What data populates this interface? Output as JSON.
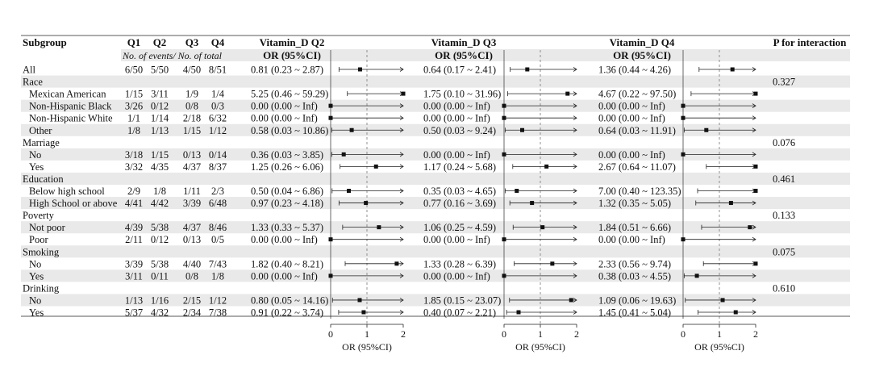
{
  "headers": {
    "subgroup": "Subgroup",
    "q1": "Q1",
    "q2": "Q2",
    "q3": "Q3",
    "q4": "Q4",
    "panel_titles": [
      "Vitamin_D Q2",
      "Vitamin_D Q3",
      "Vitamin_D Q4"
    ],
    "or_label": "OR (95%CI)",
    "events_note": "No. of events/ No. of total",
    "p_interaction": "P for interaction"
  },
  "chart_data": {
    "type": "forest",
    "xlabel": "OR (95%CI)",
    "xlim": [
      0,
      2
    ],
    "xticks": [
      0,
      1,
      2
    ],
    "reference_line": 1,
    "panels": [
      "Vitamin_D Q2",
      "Vitamin_D Q3",
      "Vitamin_D Q4"
    ],
    "rows": [
      {
        "label": "All",
        "kind": "item",
        "counts": [
          "6/50",
          "5/50",
          "4/50",
          "8/51"
        ],
        "or": [
          {
            "text": "0.81 (0.23 ~ 2.87)",
            "est": 0.81,
            "lo": 0.23,
            "hi": 2.87
          },
          {
            "text": "0.64 (0.17 ~ 2.41)",
            "est": 0.64,
            "lo": 0.17,
            "hi": 2.41
          },
          {
            "text": "1.36 (0.44 ~ 4.26)",
            "est": 1.36,
            "lo": 0.44,
            "hi": 4.26
          }
        ],
        "p": ""
      },
      {
        "label": "Race",
        "kind": "group",
        "p": "0.327"
      },
      {
        "label": "Mexican American",
        "kind": "item",
        "counts": [
          "1/15",
          "3/11",
          "1/9",
          "1/4"
        ],
        "or": [
          {
            "text": "5.25 (0.46 ~ 59.29)",
            "est": 5.25,
            "lo": 0.46,
            "hi": 59.29
          },
          {
            "text": "1.75 (0.10 ~ 31.96)",
            "est": 1.75,
            "lo": 0.1,
            "hi": 31.96
          },
          {
            "text": "4.67 (0.22 ~ 97.50)",
            "est": 4.67,
            "lo": 0.22,
            "hi": 97.5
          }
        ],
        "p": ""
      },
      {
        "label": "Non-Hispanic Black",
        "kind": "item",
        "counts": [
          "3/26",
          "0/12",
          "0/8",
          "0/3"
        ],
        "or": [
          {
            "text": "0.00 (0.00 ~ Inf)",
            "est": 0,
            "lo": 0,
            "hi": null
          },
          {
            "text": "0.00 (0.00 ~ Inf)",
            "est": 0,
            "lo": 0,
            "hi": null
          },
          {
            "text": "0.00 (0.00 ~ Inf)",
            "est": 0,
            "lo": 0,
            "hi": null
          }
        ],
        "p": ""
      },
      {
        "label": "Non-Hispanic White",
        "kind": "item",
        "counts": [
          "1/1",
          "1/14",
          "2/18",
          "6/32"
        ],
        "or": [
          {
            "text": "0.00 (0.00 ~ Inf)",
            "est": 0,
            "lo": 0,
            "hi": null
          },
          {
            "text": "0.00 (0.00 ~ Inf)",
            "est": 0,
            "lo": 0,
            "hi": null
          },
          {
            "text": "0.00 (0.00 ~ Inf)",
            "est": 0,
            "lo": 0,
            "hi": null
          }
        ],
        "p": ""
      },
      {
        "label": "Other",
        "kind": "item",
        "counts": [
          "1/8",
          "1/13",
          "1/15",
          "1/12"
        ],
        "or": [
          {
            "text": "0.58 (0.03 ~ 10.86)",
            "est": 0.58,
            "lo": 0.03,
            "hi": 10.86
          },
          {
            "text": "0.50 (0.03 ~ 9.24)",
            "est": 0.5,
            "lo": 0.03,
            "hi": 9.24
          },
          {
            "text": "0.64 (0.03 ~ 11.91)",
            "est": 0.64,
            "lo": 0.03,
            "hi": 11.91
          }
        ],
        "p": ""
      },
      {
        "label": "Marriage",
        "kind": "group",
        "p": "0.076"
      },
      {
        "label": "No",
        "kind": "item",
        "counts": [
          "3/18",
          "1/15",
          "0/13",
          "0/14"
        ],
        "or": [
          {
            "text": "0.36 (0.03 ~ 3.85)",
            "est": 0.36,
            "lo": 0.03,
            "hi": 3.85
          },
          {
            "text": "0.00 (0.00 ~ Inf)",
            "est": 0,
            "lo": 0,
            "hi": null
          },
          {
            "text": "0.00 (0.00 ~ Inf)",
            "est": 0,
            "lo": 0,
            "hi": null
          }
        ],
        "p": ""
      },
      {
        "label": "Yes",
        "kind": "item",
        "counts": [
          "3/32",
          "4/35",
          "4/37",
          "8/37"
        ],
        "or": [
          {
            "text": "1.25 (0.26 ~ 6.06)",
            "est": 1.25,
            "lo": 0.26,
            "hi": 6.06
          },
          {
            "text": "1.17 (0.24 ~ 5.68)",
            "est": 1.17,
            "lo": 0.24,
            "hi": 5.68
          },
          {
            "text": "2.67 (0.64 ~ 11.07)",
            "est": 2.67,
            "lo": 0.64,
            "hi": 11.07
          }
        ],
        "p": ""
      },
      {
        "label": "Education",
        "kind": "group",
        "p": "0.461"
      },
      {
        "label": "Below high school",
        "kind": "item",
        "counts": [
          "2/9",
          "1/8",
          "1/11",
          "2/3"
        ],
        "or": [
          {
            "text": "0.50 (0.04 ~ 6.86)",
            "est": 0.5,
            "lo": 0.04,
            "hi": 6.86
          },
          {
            "text": "0.35 (0.03 ~ 4.65)",
            "est": 0.35,
            "lo": 0.03,
            "hi": 4.65
          },
          {
            "text": "7.00 (0.40 ~ 123.35)",
            "est": 7.0,
            "lo": 0.4,
            "hi": 123.35
          }
        ],
        "p": ""
      },
      {
        "label": "High School or above",
        "kind": "item",
        "counts": [
          "4/41",
          "4/42",
          "3/39",
          "6/48"
        ],
        "or": [
          {
            "text": "0.97 (0.23 ~ 4.18)",
            "est": 0.97,
            "lo": 0.23,
            "hi": 4.18
          },
          {
            "text": "0.77 (0.16 ~ 3.69)",
            "est": 0.77,
            "lo": 0.16,
            "hi": 3.69
          },
          {
            "text": "1.32 (0.35 ~ 5.05)",
            "est": 1.32,
            "lo": 0.35,
            "hi": 5.05
          }
        ],
        "p": ""
      },
      {
        "label": "Poverty",
        "kind": "group",
        "p": "0.133"
      },
      {
        "label": "Not poor",
        "kind": "item",
        "counts": [
          "4/39",
          "5/38",
          "4/37",
          "8/46"
        ],
        "or": [
          {
            "text": "1.33 (0.33 ~ 5.37)",
            "est": 1.33,
            "lo": 0.33,
            "hi": 5.37
          },
          {
            "text": "1.06 (0.25 ~ 4.59)",
            "est": 1.06,
            "lo": 0.25,
            "hi": 4.59
          },
          {
            "text": "1.84 (0.51 ~ 6.66)",
            "est": 1.84,
            "lo": 0.51,
            "hi": 6.66
          }
        ],
        "p": ""
      },
      {
        "label": "Poor",
        "kind": "item",
        "counts": [
          "2/11",
          "0/12",
          "0/13",
          "0/5"
        ],
        "or": [
          {
            "text": "0.00 (0.00 ~ Inf)",
            "est": 0,
            "lo": 0,
            "hi": null
          },
          {
            "text": "0.00 (0.00 ~ Inf)",
            "est": 0,
            "lo": 0,
            "hi": null
          },
          {
            "text": "0.00 (0.00 ~ Inf)",
            "est": 0,
            "lo": 0,
            "hi": null
          }
        ],
        "p": ""
      },
      {
        "label": "Smoking",
        "kind": "group",
        "p": "0.075"
      },
      {
        "label": "No",
        "kind": "item",
        "counts": [
          "3/39",
          "5/38",
          "4/40",
          "7/43"
        ],
        "or": [
          {
            "text": "1.82 (0.40 ~ 8.21)",
            "est": 1.82,
            "lo": 0.4,
            "hi": 8.21
          },
          {
            "text": "1.33 (0.28 ~ 6.39)",
            "est": 1.33,
            "lo": 0.28,
            "hi": 6.39
          },
          {
            "text": "2.33 (0.56 ~ 9.74)",
            "est": 2.33,
            "lo": 0.56,
            "hi": 9.74
          }
        ],
        "p": ""
      },
      {
        "label": "Yes",
        "kind": "item",
        "counts": [
          "3/11",
          "0/11",
          "0/8",
          "1/8"
        ],
        "or": [
          {
            "text": "0.00 (0.00 ~ Inf)",
            "est": 0,
            "lo": 0,
            "hi": null
          },
          {
            "text": "0.00 (0.00 ~ Inf)",
            "est": 0,
            "lo": 0,
            "hi": null
          },
          {
            "text": "0.38 (0.03 ~ 4.55)",
            "est": 0.38,
            "lo": 0.03,
            "hi": 4.55
          }
        ],
        "p": ""
      },
      {
        "label": "Drinking",
        "kind": "group",
        "p": "0.610"
      },
      {
        "label": "No",
        "kind": "item",
        "counts": [
          "1/13",
          "1/16",
          "2/15",
          "1/12"
        ],
        "or": [
          {
            "text": "0.80 (0.05 ~ 14.16)",
            "est": 0.8,
            "lo": 0.05,
            "hi": 14.16
          },
          {
            "text": "1.85 (0.15 ~ 23.07)",
            "est": 1.85,
            "lo": 0.15,
            "hi": 23.07
          },
          {
            "text": "1.09 (0.06 ~ 19.63)",
            "est": 1.09,
            "lo": 0.06,
            "hi": 19.63
          }
        ],
        "p": ""
      },
      {
        "label": "Yes",
        "kind": "item",
        "counts": [
          "5/37",
          "4/32",
          "2/34",
          "7/38"
        ],
        "or": [
          {
            "text": "0.91 (0.22 ~ 3.74)",
            "est": 0.91,
            "lo": 0.22,
            "hi": 3.74
          },
          {
            "text": "0.40 (0.07 ~ 2.21)",
            "est": 0.4,
            "lo": 0.07,
            "hi": 2.21
          },
          {
            "text": "1.45 (0.41 ~ 5.04)",
            "est": 1.45,
            "lo": 0.41,
            "hi": 5.04
          }
        ],
        "p": ""
      }
    ]
  }
}
